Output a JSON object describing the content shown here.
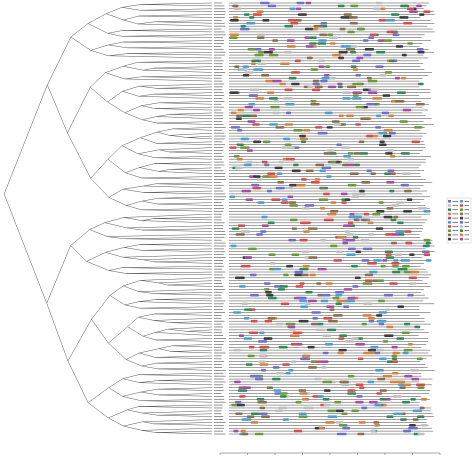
{
  "figure": {
    "kind": "phylogenetic tree with conserved motif distribution",
    "leaf_count": 150,
    "motif_legend": {
      "entries": [
        {
          "id": "motif-1",
          "color": "#6f6fcf"
        },
        {
          "id": "motif-2",
          "color": "#c0c0c0"
        },
        {
          "id": "motif-3",
          "color": "#2e8b57"
        },
        {
          "id": "motif-4",
          "color": "#d9823b"
        },
        {
          "id": "motif-5",
          "color": "#a64ca6"
        },
        {
          "id": "motif-6",
          "color": "#4aa0d5"
        },
        {
          "id": "motif-7",
          "color": "#d94c4c"
        },
        {
          "id": "motif-8",
          "color": "#6a9a3a"
        },
        {
          "id": "motif-9",
          "color": "#8a6f4e"
        },
        {
          "id": "motif-10",
          "color": "#3c3c3c"
        }
      ]
    },
    "colors": {
      "tree_line": "#555555",
      "track_line": "#444444",
      "leaf_label": "#666666",
      "axis": "#555555"
    }
  }
}
